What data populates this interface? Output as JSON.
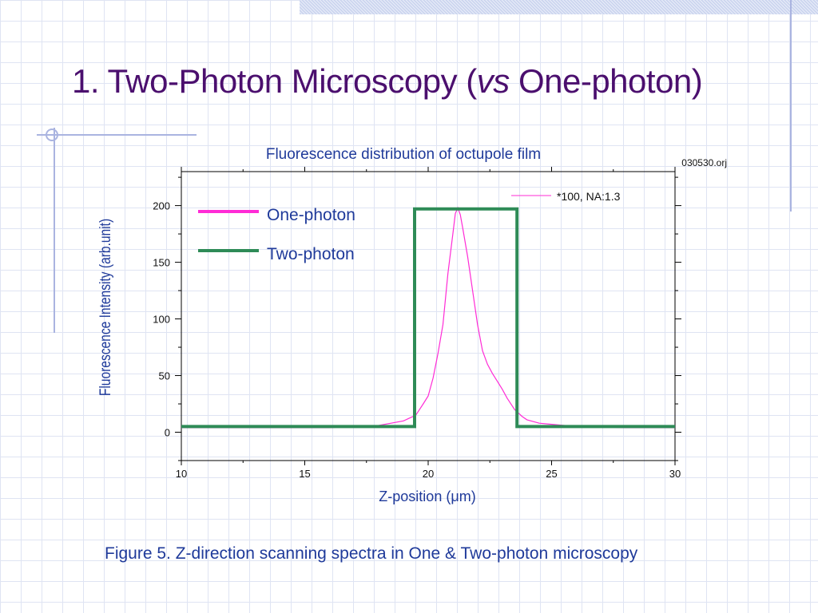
{
  "slide": {
    "title_main": "1. Two-Photon Microscopy (",
    "title_italic": "vs",
    "title_end": "One-photon)",
    "caption": "Figure 5. Z-direction scanning spectra in One & Two-photon microscopy"
  },
  "colors": {
    "title": "#4b0f6e",
    "axis_text": "#1f3a9a",
    "one_photon": "#ff2bd6",
    "two_photon": "#2e8b57",
    "grid_bg": "#dfe4f3"
  },
  "chart_data": {
    "type": "line",
    "title": "Fluorescence distribution  of octupole film",
    "file_label": "030530.orj",
    "xlabel": "Z-position (μm)",
    "ylabel": "Fluorescence Intensity (arb.unit)",
    "xlim": [
      10,
      30
    ],
    "ylim": [
      -25,
      230
    ],
    "x_ticks": [
      10,
      15,
      20,
      25,
      30
    ],
    "y_ticks": [
      0,
      50,
      100,
      150,
      200
    ],
    "grid": false,
    "legend_position": "top-left",
    "inner_legend": {
      "label": "*100, NA:1.3",
      "position": "top-right"
    },
    "series": [
      {
        "name": "One-photon",
        "color": "#ff2bd6",
        "x": [
          10,
          12,
          14,
          16,
          17,
          18,
          18.5,
          19,
          19.5,
          19.8,
          20,
          20.2,
          20.4,
          20.6,
          20.8,
          21,
          21.1,
          21.2,
          21.3,
          21.4,
          21.6,
          21.8,
          22,
          22.2,
          22.4,
          22.6,
          22.8,
          23,
          23.2,
          23.5,
          23.8,
          24,
          24.5,
          25,
          25.5,
          26,
          28,
          30
        ],
        "values": [
          4,
          4,
          4,
          4,
          5,
          6,
          8,
          10,
          15,
          25,
          32,
          48,
          70,
          95,
          140,
          175,
          193,
          198,
          192,
          180,
          155,
          125,
          95,
          72,
          60,
          52,
          45,
          38,
          30,
          20,
          14,
          11,
          8,
          7,
          6,
          5,
          4,
          4
        ]
      },
      {
        "name": "Two-photon",
        "color": "#2e8b57",
        "x": [
          10,
          19.45,
          19.45,
          23.6,
          23.6,
          30
        ],
        "values": [
          5,
          5,
          197,
          197,
          5,
          5
        ]
      }
    ]
  }
}
